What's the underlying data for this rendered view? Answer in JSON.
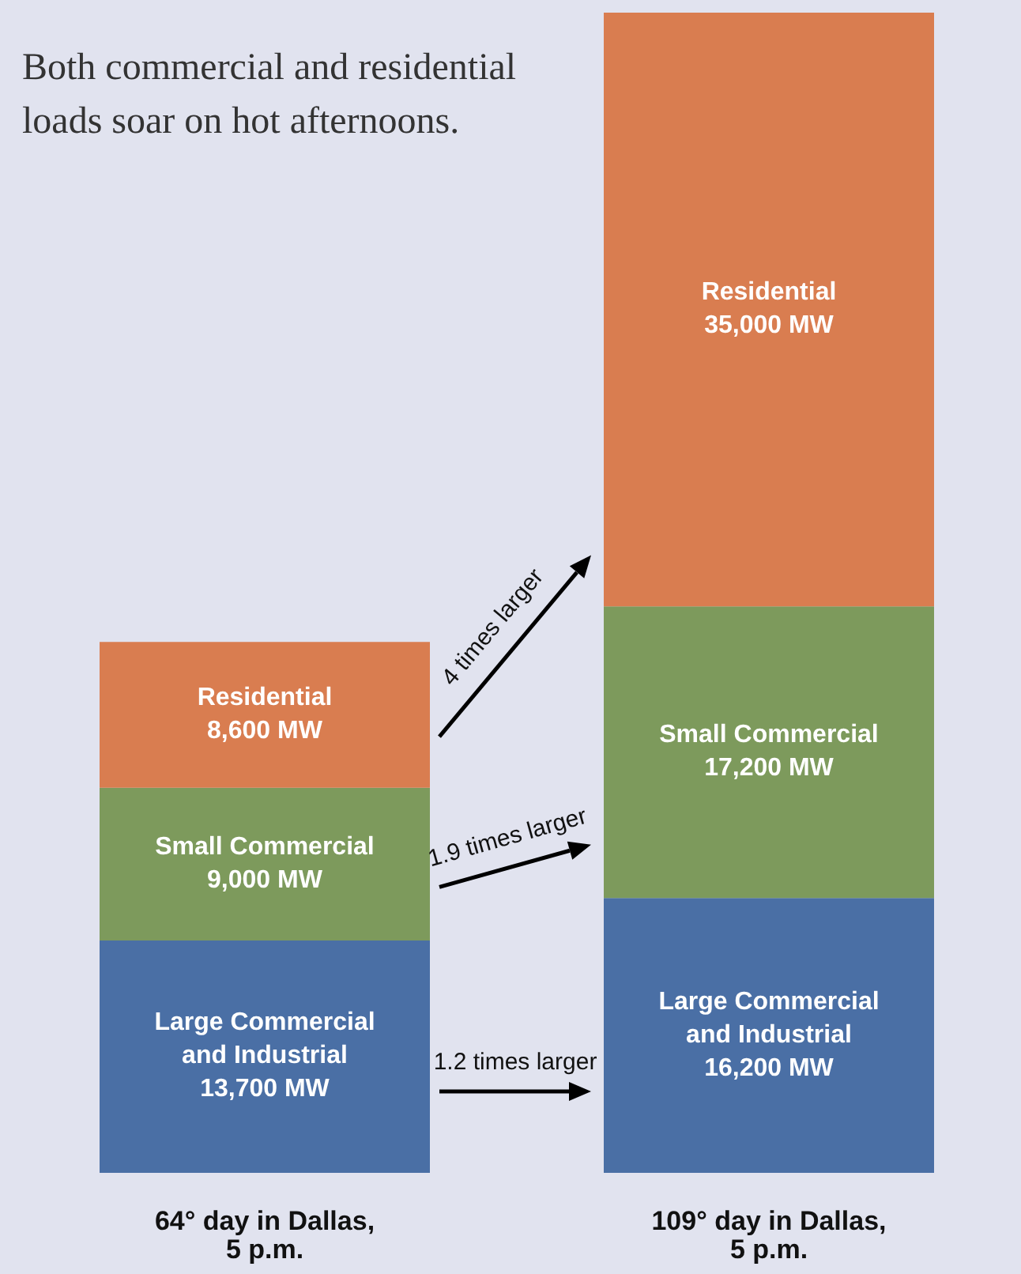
{
  "chart_data": {
    "type": "bar",
    "title": "Both commercial and residential loads soar on hot afternoons.",
    "categories": [
      "64° day in Dallas, 5 p.m.",
      "109° day in Dallas, 5 p.m."
    ],
    "stacked": true,
    "legend": false,
    "grid": false,
    "series": [
      {
        "name": "Large Commercial and Industrial",
        "color": "#4a6fa5",
        "values": [
          13700,
          16200
        ],
        "value_labels": [
          "13,700 MW",
          "16,200 MW"
        ]
      },
      {
        "name": "Small Commercial",
        "color": "#7d9a5c",
        "values": [
          9000,
          17200
        ],
        "value_labels": [
          "9,000 MW",
          "17,200 MW"
        ]
      },
      {
        "name": "Residential",
        "color": "#d97d50",
        "values": [
          8600,
          35000
        ],
        "value_labels": [
          "8,600 MW",
          "35,000 MW"
        ]
      }
    ],
    "annotations": [
      "1.2 times larger",
      "1.9 times larger",
      "4 times larger"
    ]
  }
}
